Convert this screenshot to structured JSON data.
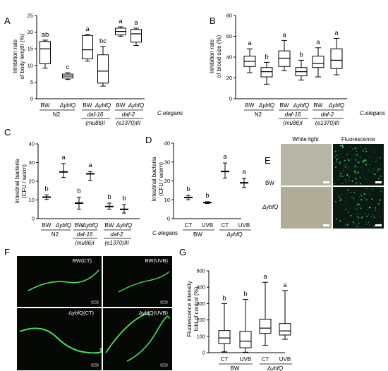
{
  "panels": {
    "A": {
      "label": "A",
      "ylabel": [
        "Inhibition rate",
        "of body length (%)"
      ],
      "ylim": [
        0,
        25
      ],
      "yticks": [
        0,
        5,
        10,
        15,
        20,
        25
      ],
      "strain_labels": [
        "BW",
        "ΔybfQ",
        "BW",
        "ΔybfQ",
        "BW",
        "ΔybfQ"
      ],
      "groups": [
        {
          "line1": "N2",
          "line2": ""
        },
        {
          "line1": "daf-16",
          "line2": "(mu86)I"
        },
        {
          "line1": "daf-2",
          "line2": "(e1370)III"
        }
      ],
      "organism": "C.elegans",
      "boxes": [
        {
          "min": 9.2,
          "q1": 10.5,
          "median": 15.0,
          "q3": 17.2,
          "max": 17.6,
          "sig": "ab"
        },
        {
          "min": 5.8,
          "q1": 6.2,
          "median": 6.8,
          "q3": 7.4,
          "max": 7.8,
          "sig": "c"
        },
        {
          "min": 11.3,
          "q1": 12.0,
          "median": 14.7,
          "q3": 19.0,
          "max": 19.3,
          "sig": "a"
        },
        {
          "min": 3.8,
          "q1": 4.7,
          "median": 8.3,
          "q3": 13.2,
          "max": 15.7,
          "sig": "bc"
        },
        {
          "min": 18.8,
          "q1": 19.2,
          "median": 20.2,
          "q3": 21.2,
          "max": 21.6,
          "sig": "a"
        },
        {
          "min": 16.0,
          "q1": 17.0,
          "median": 19.5,
          "q3": 20.8,
          "max": 21.2,
          "sig": "a"
        }
      ]
    },
    "B": {
      "label": "B",
      "ylabel": [
        "Inhibition rate",
        "of brood size (%)"
      ],
      "ylim": [
        0,
        80
      ],
      "yticks": [
        0,
        20,
        40,
        60,
        80
      ],
      "strain_labels": [
        "BW",
        "ΔybfQ",
        "BW",
        "ΔybfQ",
        "BW",
        "ΔybfQ"
      ],
      "groups": [
        {
          "line1": "N2",
          "line2": ""
        },
        {
          "line1": "daf-16",
          "line2": "(mu86)I"
        },
        {
          "line1": "daf-2",
          "line2": "(e1370)III"
        }
      ],
      "organism": "C.elegans",
      "boxes": [
        {
          "min": 25,
          "q1": 31,
          "median": 36,
          "q3": 41,
          "max": 48,
          "sig": "a"
        },
        {
          "min": 14,
          "q1": 21,
          "median": 26,
          "q3": 30,
          "max": 35,
          "sig": "b"
        },
        {
          "min": 27,
          "q1": 31,
          "median": 39,
          "q3": 46,
          "max": 56,
          "sig": "a"
        },
        {
          "min": 18,
          "q1": 22,
          "median": 26,
          "q3": 30,
          "max": 37,
          "sig": "b"
        },
        {
          "min": 21,
          "q1": 30,
          "median": 34,
          "q3": 41,
          "max": 49,
          "sig": "a"
        },
        {
          "min": 23,
          "q1": 29,
          "median": 37,
          "q3": 48,
          "max": 58,
          "sig": "a"
        }
      ]
    },
    "C": {
      "label": "C",
      "ylabel": [
        "Intestinal bacteria",
        "(CFU / worm)"
      ],
      "ylim": [
        0,
        40
      ],
      "yticks": [
        0,
        10,
        20,
        30,
        40
      ],
      "strain_labels": [
        "BW",
        "ΔybfQ",
        "BW",
        "ΔybfQ",
        "BW",
        "ΔybfQ"
      ],
      "groups": [
        {
          "line1": "N2",
          "line2": ""
        },
        {
          "line1": "daf-16",
          "line2": "(mu86)I"
        },
        {
          "line1": "daf-2",
          "line2": "(e1370)III"
        }
      ],
      "organism": "C.elegans",
      "points": [
        {
          "mean": 11.5,
          "low": 10.3,
          "high": 12.7,
          "sig": "b"
        },
        {
          "mean": 25.0,
          "low": 22.0,
          "high": 29.5,
          "sig": "a"
        },
        {
          "mean": 8.3,
          "low": 5.0,
          "high": 11.5,
          "sig": "b"
        },
        {
          "mean": 24.0,
          "low": 20.5,
          "high": 25.2,
          "sig": "a"
        },
        {
          "mean": 6.5,
          "low": 5.0,
          "high": 8.3,
          "sig": "b"
        },
        {
          "mean": 5.0,
          "low": 3.0,
          "high": 7.5,
          "sig": "b"
        }
      ]
    },
    "D": {
      "label": "D",
      "ylabel": [
        "Intestinal bacteria",
        "(CFU / worm)"
      ],
      "ylim": [
        0,
        40
      ],
      "yticks": [
        0,
        10,
        20,
        30,
        40
      ],
      "x_labels": [
        "CT",
        "UVB",
        "CT",
        "UVB"
      ],
      "groups": [
        {
          "line1": "BW",
          "line2": ""
        },
        {
          "line1": "ΔybfQ",
          "line2": ""
        }
      ],
      "points": [
        {
          "mean": 11.2,
          "low": 10.0,
          "high": 12.3,
          "sig": "b"
        },
        {
          "mean": 8.5,
          "low": 8.0,
          "high": 9.0,
          "sig": "b"
        },
        {
          "mean": 25.0,
          "low": 21.5,
          "high": 29.5,
          "sig": "a"
        },
        {
          "mean": 19.0,
          "low": 16.5,
          "high": 21.5,
          "sig": "a"
        }
      ]
    },
    "E": {
      "label": "E",
      "col_titles": [
        "White light",
        "Fluorescence"
      ],
      "row_labels": [
        "BW",
        "ΔybfQ"
      ]
    },
    "F": {
      "label": "F",
      "captions": [
        "BW(CT)",
        "BW(UVB)",
        "ΔybfQ(CT)",
        "ΔybfQ(UVB)"
      ]
    },
    "G": {
      "label": "G",
      "ylabel": [
        "Fluorescence intensity",
        "fold of control (%)"
      ],
      "ylim": [
        0,
        500
      ],
      "yticks": [
        0,
        100,
        200,
        300,
        400,
        500
      ],
      "x_labels": [
        "CT",
        "UVB",
        "CT",
        "UVB"
      ],
      "groups": [
        {
          "line1": "BW",
          "line2": ""
        },
        {
          "line1": "ΔybfQ",
          "line2": ""
        }
      ],
      "boxes": [
        {
          "min": 5,
          "q1": 55,
          "median": 90,
          "q3": 135,
          "max": 300,
          "sig": "b"
        },
        {
          "min": 3,
          "q1": 30,
          "median": 70,
          "q3": 130,
          "max": 325,
          "sig": "b"
        },
        {
          "min": 45,
          "q1": 118,
          "median": 150,
          "q3": 205,
          "max": 430,
          "sig": "a"
        },
        {
          "min": 82,
          "q1": 108,
          "median": 133,
          "q3": 178,
          "max": 380,
          "sig": "a"
        }
      ]
    }
  },
  "colors": {
    "line": "#000000",
    "white_light": "#b6b5a8",
    "fluor_bg": "#0a1a12",
    "fluor_dot": "#3fd16a",
    "worm_green": "#4be05e",
    "micro_bg": "#050805"
  }
}
